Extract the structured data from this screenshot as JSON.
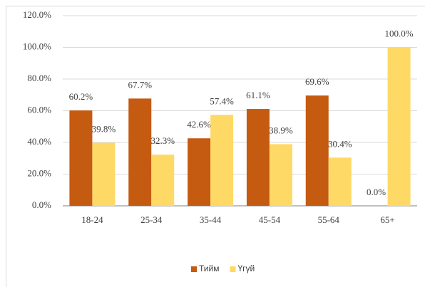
{
  "chart_data": {
    "type": "bar",
    "categories": [
      "18-24",
      "25-34",
      "35-44",
      "45-54",
      "55-64",
      "65+"
    ],
    "series": [
      {
        "name": "Тийм",
        "color": "#c55a11",
        "values": [
          60.2,
          67.7,
          42.6,
          61.1,
          69.6,
          0.0
        ],
        "value_labels": [
          "60.2%",
          "67.7%",
          "42.6%",
          "61.1%",
          "69.6%",
          "0.0%"
        ]
      },
      {
        "name": "Үгүй",
        "color": "#ffd966",
        "values": [
          39.8,
          32.3,
          57.4,
          38.9,
          30.4,
          100.0
        ],
        "value_labels": [
          "39.8%",
          "32.3%",
          "57.4%",
          "38.9%",
          "30.4%",
          "100.0%"
        ]
      }
    ],
    "ylim": [
      0,
      120
    ],
    "yticks": [
      {
        "value": 0,
        "label": "0.0%"
      },
      {
        "value": 20,
        "label": "20.0%"
      },
      {
        "value": 40,
        "label": "40.0%"
      },
      {
        "value": 60,
        "label": "60.0%"
      },
      {
        "value": 80,
        "label": "80.0%"
      },
      {
        "value": 100,
        "label": "100.0%"
      },
      {
        "value": 120,
        "label": "120.0%"
      }
    ],
    "grid": true,
    "legend": "bottom"
  }
}
